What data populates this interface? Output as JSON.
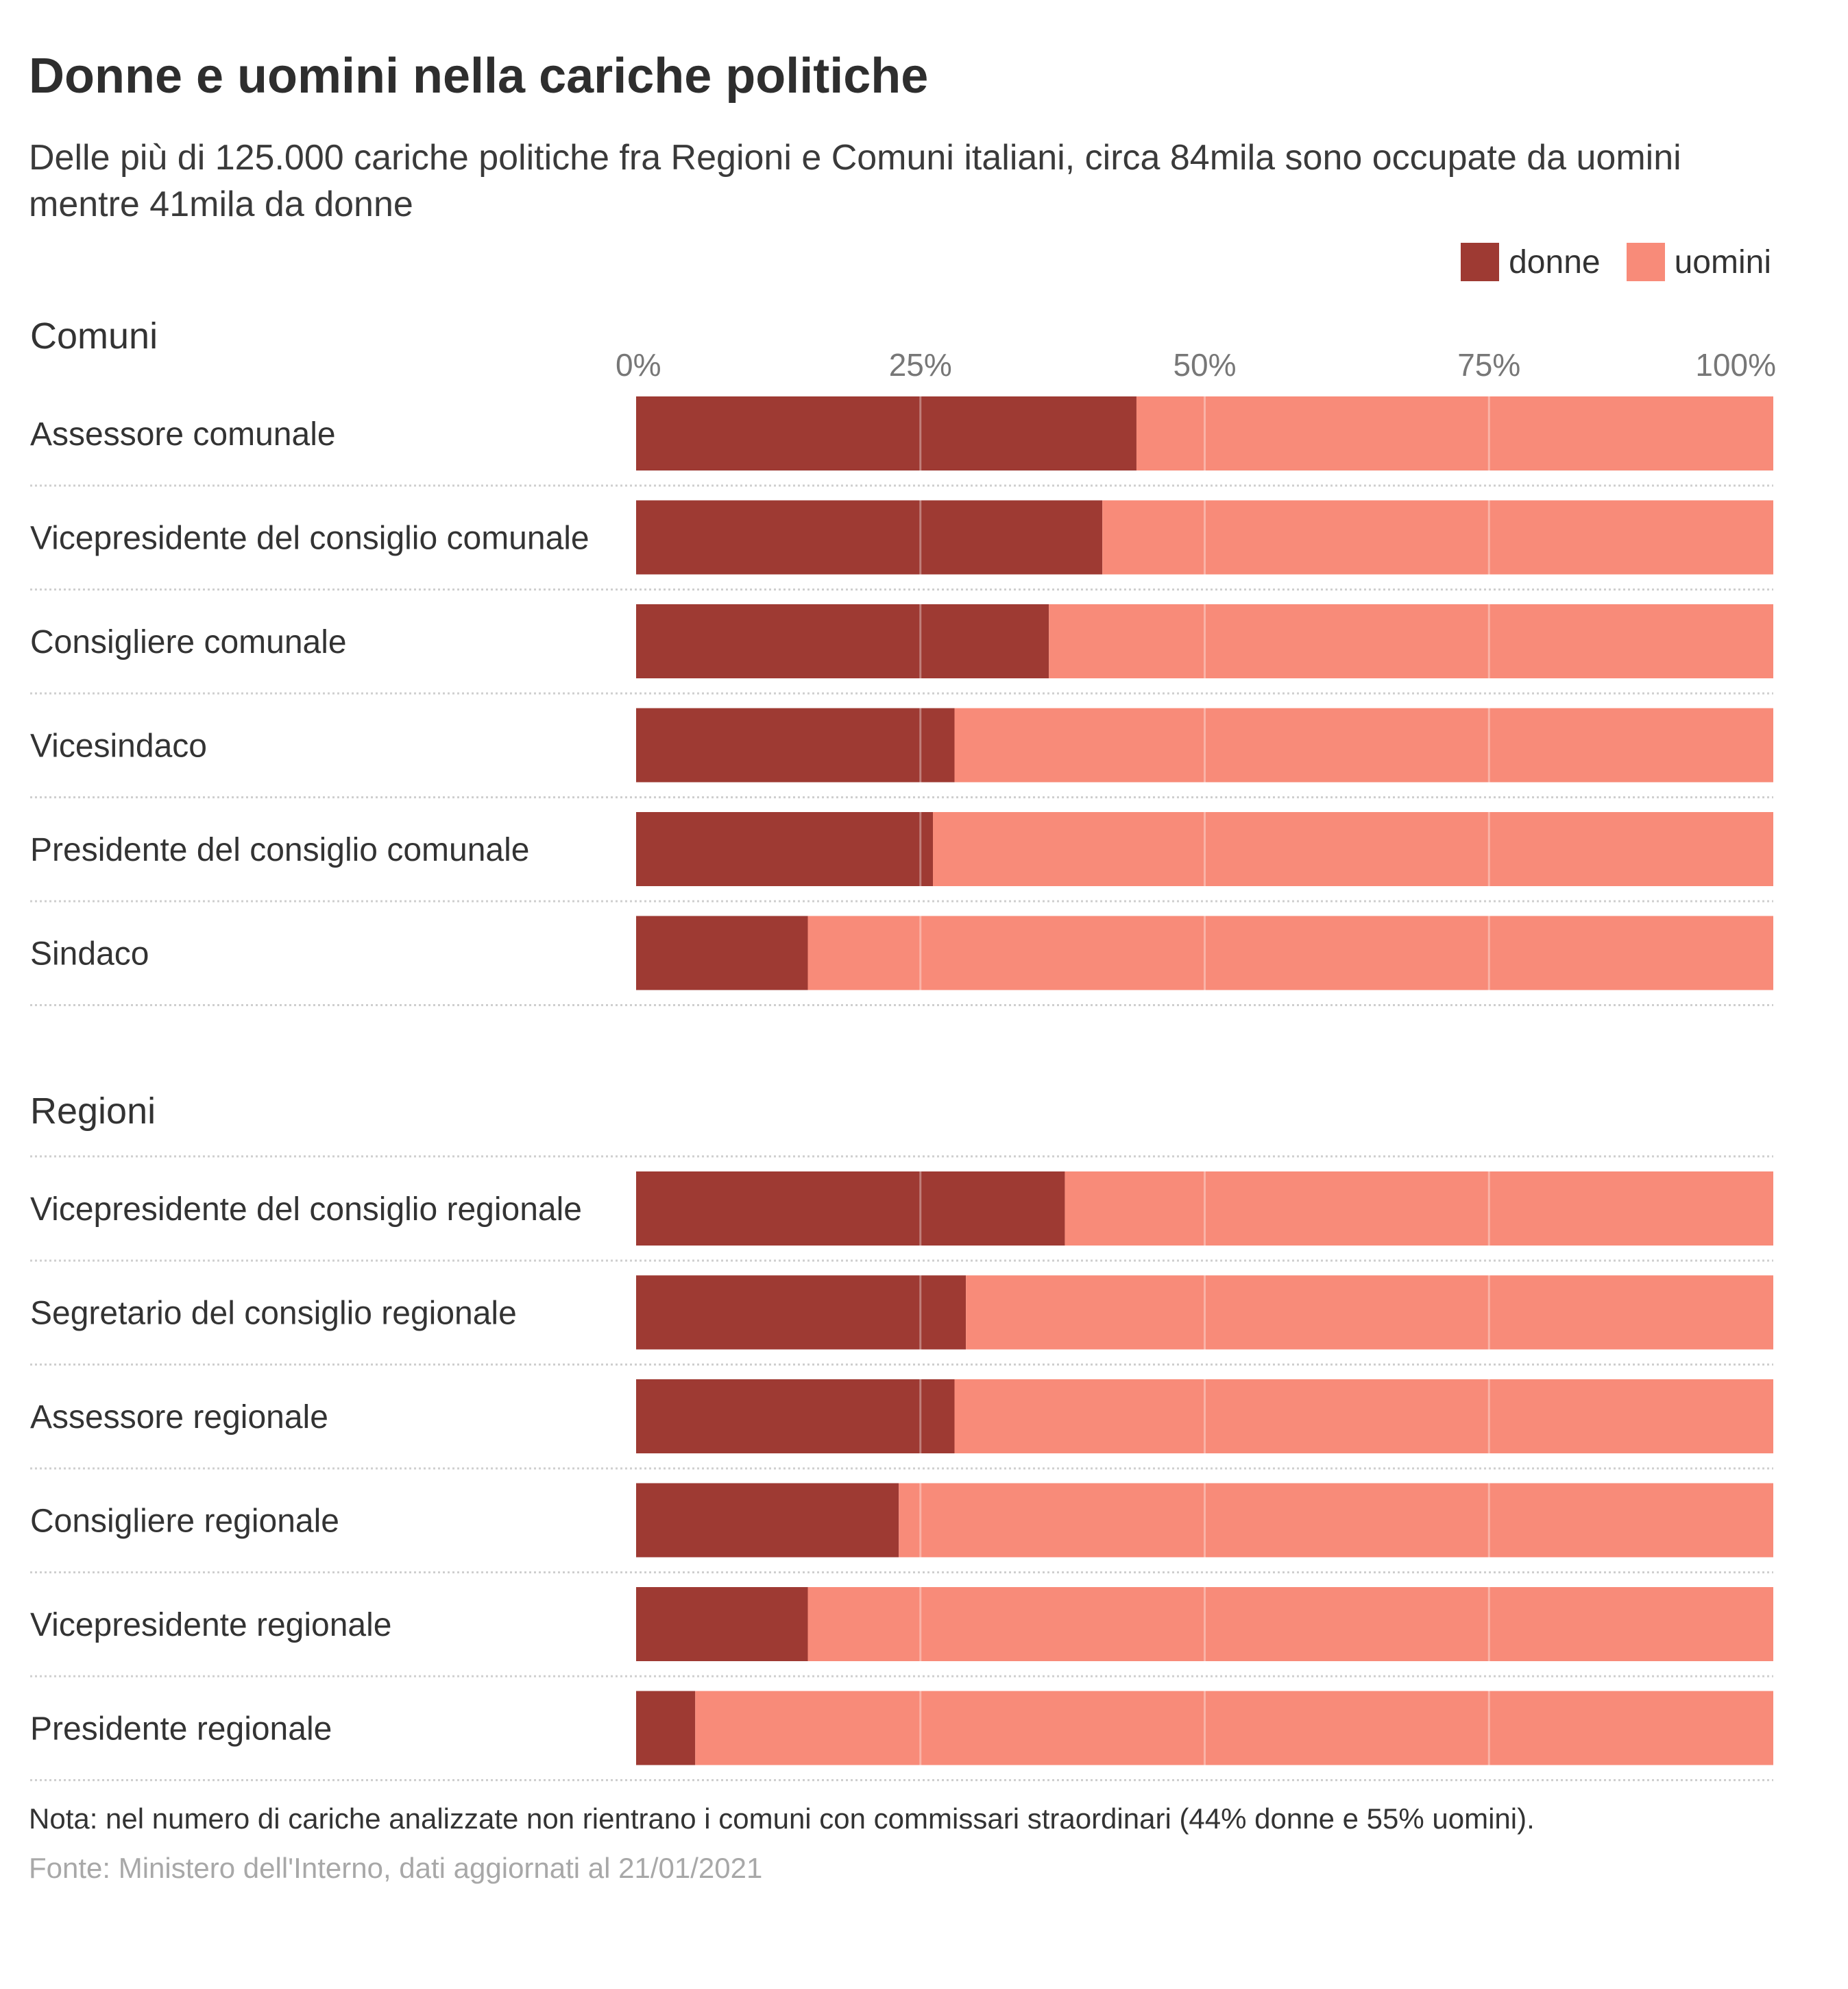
{
  "title": "Donne e uomini nella cariche politiche",
  "subtitle": "Delle più di 125.000 cariche politiche fra Regioni e Comuni italiani, circa 84mila sono occupate da uomini mentre 41mila da donne",
  "legend": [
    {
      "name": "donne",
      "color": "#9e3a33"
    },
    {
      "name": "uomini",
      "color": "#f88b79"
    }
  ],
  "chart_data": {
    "type": "bar",
    "orientation": "horizontal",
    "stacked": true,
    "xlim": [
      0,
      100
    ],
    "xticks": [
      "0%",
      "25%",
      "50%",
      "75%",
      "100%"
    ],
    "xtick_values": [
      0,
      25,
      50,
      75,
      100
    ],
    "legend_position": "top-right",
    "grid": true,
    "groups": [
      {
        "name": "Comuni",
        "categories": [
          "Assessore comunale",
          "Vicepresidente del consiglio comunale",
          "Consigliere comunale",
          "Vicesindaco",
          "Presidente del consiglio comunale",
          "Sindaco"
        ],
        "series": [
          {
            "name": "donne",
            "values": [
              44,
              41,
              36.3,
              28,
              26.1,
              15.1
            ]
          },
          {
            "name": "uomini",
            "values": [
              56,
              59,
              63.7,
              72,
              73.9,
              84.9
            ]
          }
        ]
      },
      {
        "name": "Regioni",
        "categories": [
          "Vicepresidente del consiglio regionale",
          "Segretario del consiglio regionale",
          "Assessore regionale",
          "Consigliere regionale",
          "Vicepresidente regionale",
          "Presidente regionale"
        ],
        "series": [
          {
            "name": "donne",
            "values": [
              37.7,
              29,
              28,
              23.1,
              15.1,
              5.2
            ]
          },
          {
            "name": "uomini",
            "values": [
              62.3,
              71,
              72,
              76.9,
              84.9,
              94.8
            ]
          }
        ]
      }
    ]
  },
  "note": "Nota: nel numero di cariche analizzate non rientrano i comuni con commissari straordinari (44% donne e 55% uomini).",
  "source": "Fonte: Ministero dell'Interno, dati aggiornati al 21/01/2021"
}
